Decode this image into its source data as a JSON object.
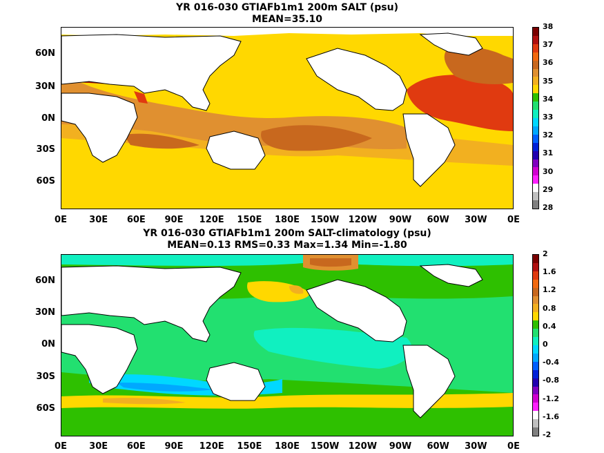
{
  "top": {
    "title": "YR 016-030 GTIAFb1m1 200m SALT (psu)",
    "subtitle": "MEAN=35.10",
    "colorbar": {
      "labels": [
        "38",
        "37",
        "36",
        "35",
        "34",
        "33",
        "32",
        "31",
        "30",
        "29",
        "28"
      ],
      "colors": [
        "#7a0000",
        "#b01010",
        "#e03a10",
        "#f26a10",
        "#c8681e",
        "#e09030",
        "#f2b020",
        "#ffd800",
        "#2ec000",
        "#22e070",
        "#10f0c0",
        "#00d8ff",
        "#00a8ff",
        "#0060ff",
        "#0020d8",
        "#2000b0",
        "#8000c0",
        "#d000d0",
        "#ff20ff",
        "#ffffff",
        "#c0c0c0",
        "#808080"
      ]
    }
  },
  "bottom": {
    "title": "YR 016-030 GTIAFb1m1 200m SALT-climatology (psu)",
    "subtitle": "MEAN=0.13   RMS=0.33   Max=1.34   Min=-1.80",
    "colorbar": {
      "labels": [
        "2",
        "1.6",
        "1.2",
        "0.8",
        "0.4",
        "0",
        "-0.4",
        "-0.8",
        "-1.2",
        "-1.6",
        "-2"
      ],
      "colors": [
        "#7a0000",
        "#b01010",
        "#e03a10",
        "#f26a10",
        "#c8681e",
        "#e09030",
        "#f2b020",
        "#ffd800",
        "#2ec000",
        "#22e070",
        "#10f0c0",
        "#00d8ff",
        "#00a8ff",
        "#0060ff",
        "#0020d8",
        "#2000b0",
        "#8000c0",
        "#d000d0",
        "#ff20ff",
        "#ffffff",
        "#c0c0c0",
        "#808080"
      ]
    }
  },
  "axes": {
    "lat_labels": [
      "60N",
      "30N",
      "0N",
      "30S",
      "60S"
    ],
    "lon_labels": [
      "0E",
      "30E",
      "60E",
      "90E",
      "120E",
      "150E",
      "180E",
      "150W",
      "120W",
      "90W",
      "60W",
      "30W",
      "0E"
    ]
  }
}
